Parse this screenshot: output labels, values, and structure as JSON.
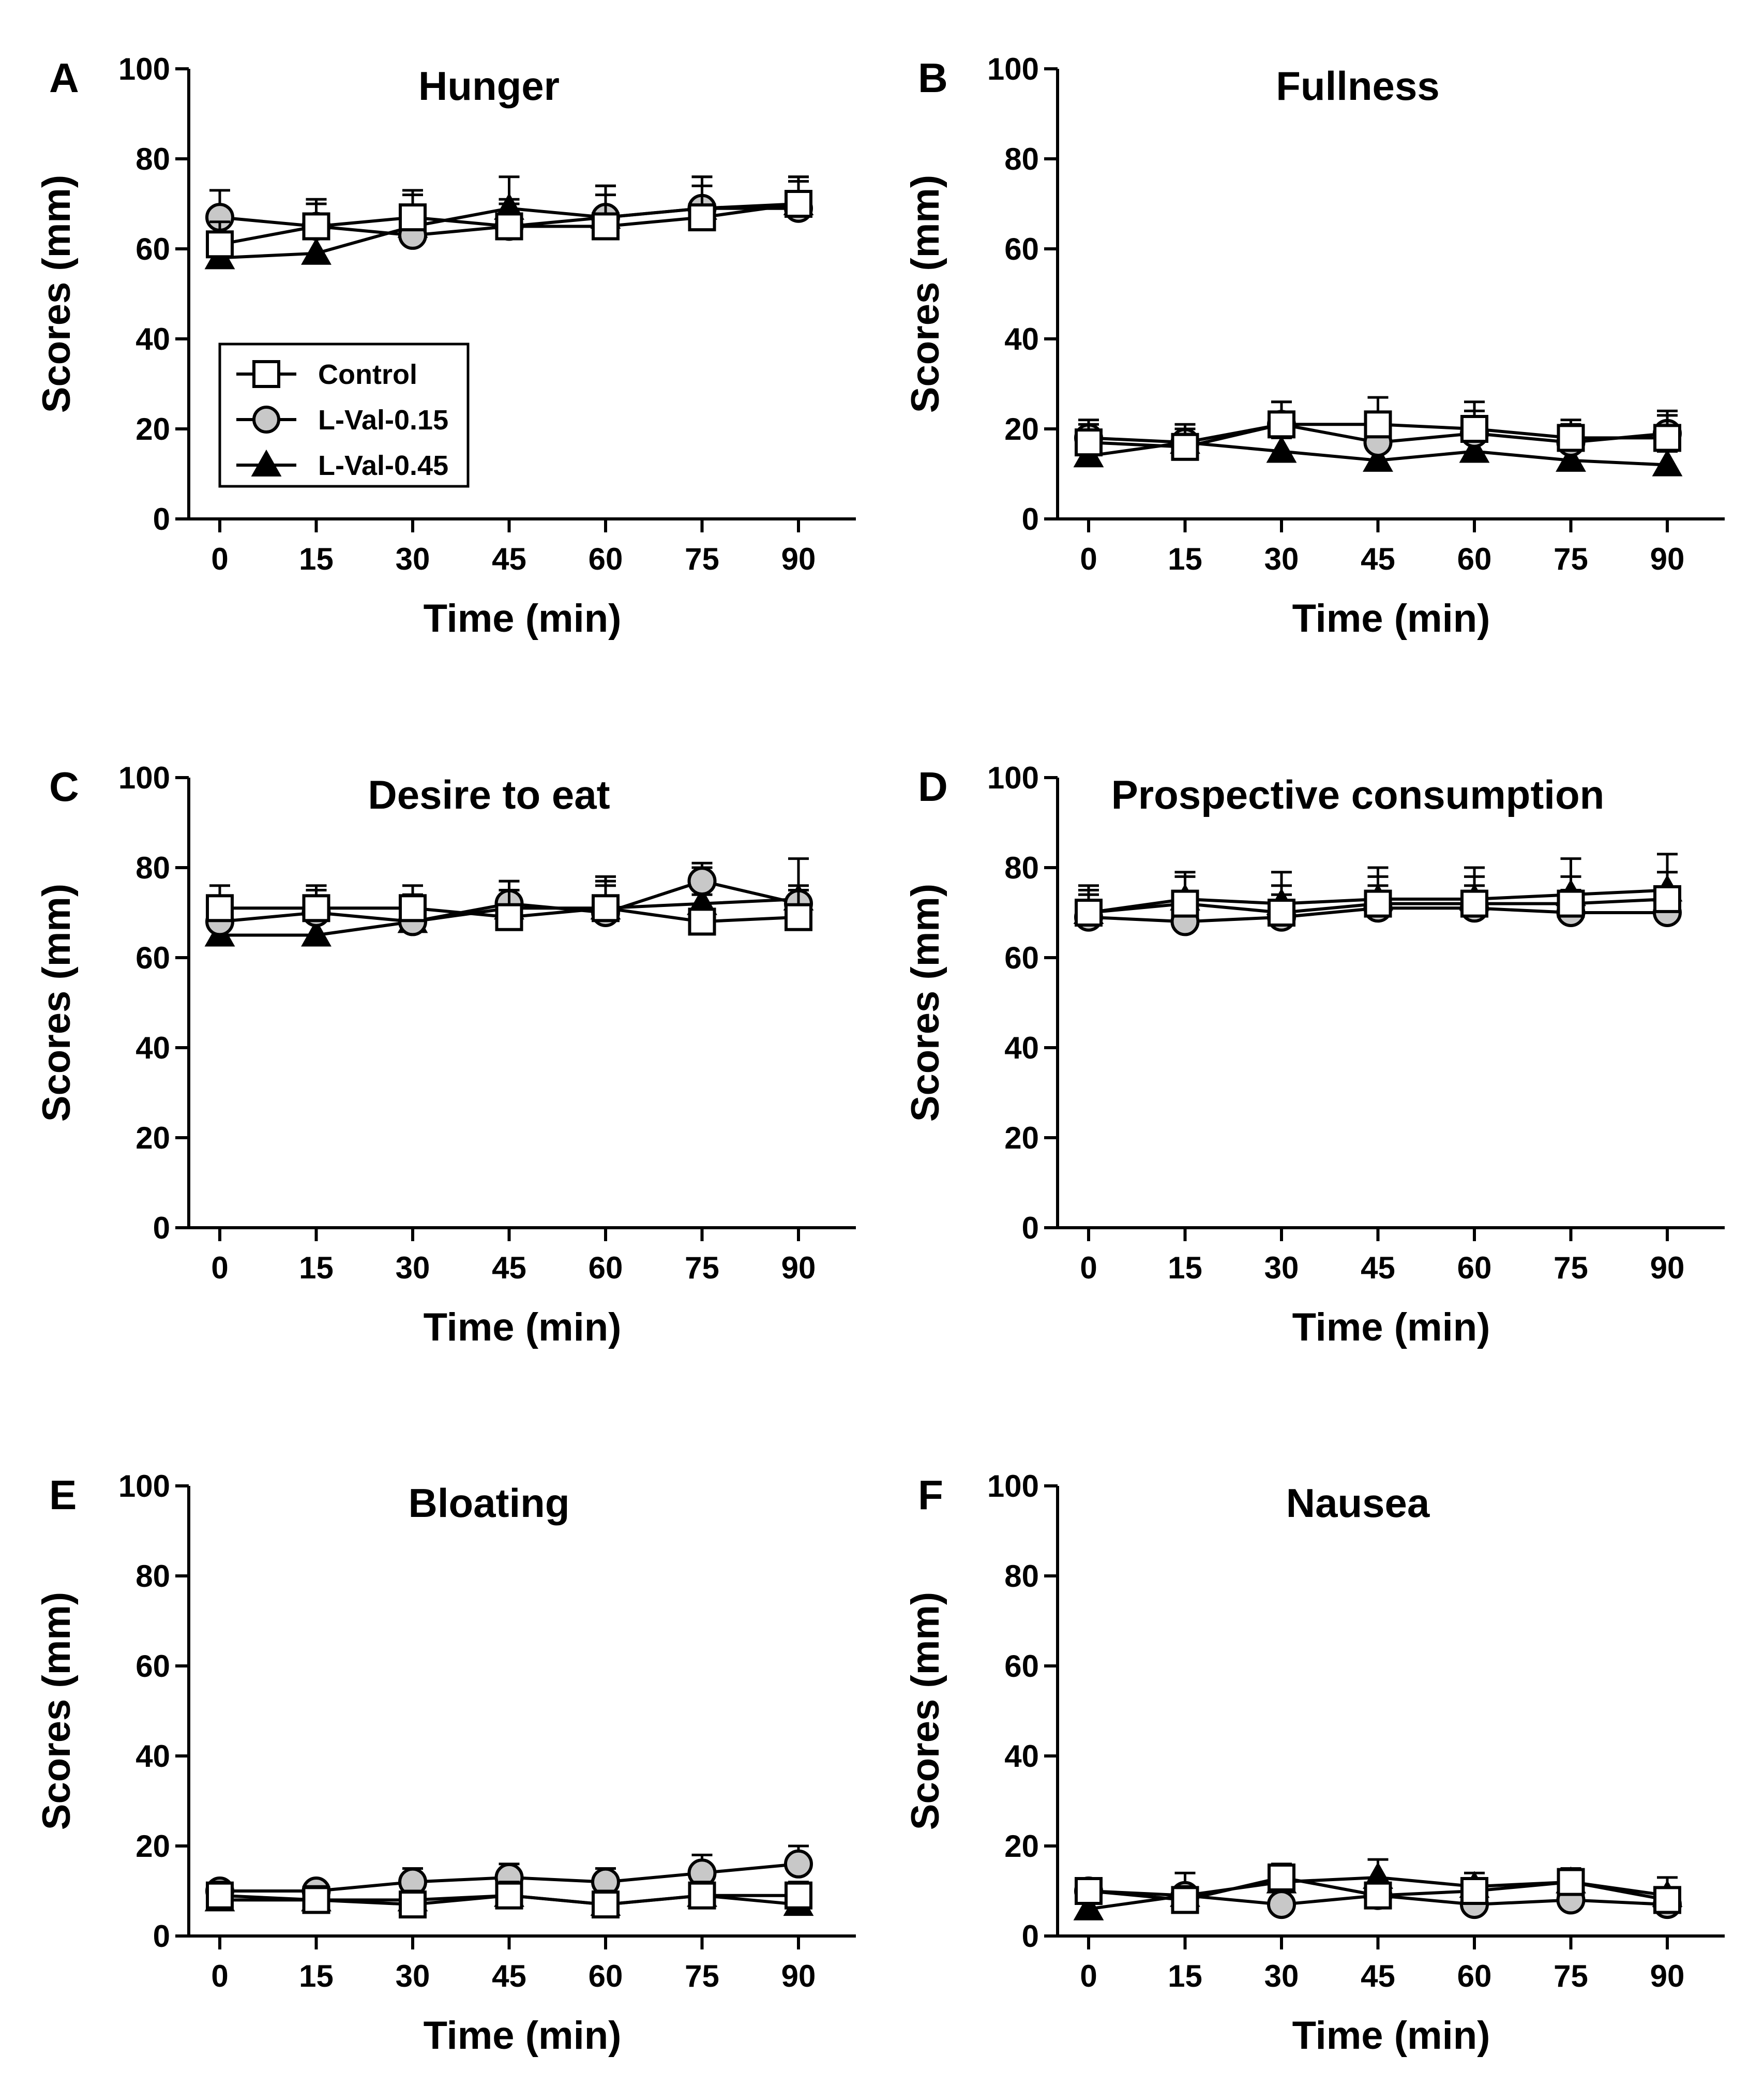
{
  "chart_data": [
    {
      "panel": "A",
      "type": "line",
      "title": "Hunger",
      "xlabel": "Time (min)",
      "ylabel": "Scores (mm)",
      "x": [
        0,
        15,
        30,
        45,
        60,
        75,
        90
      ],
      "ylim": [
        0,
        100
      ],
      "yticks": [
        0,
        20,
        40,
        60,
        80,
        100
      ],
      "series": [
        {
          "name": "Control",
          "values": [
            61,
            65,
            67,
            65,
            65,
            67,
            70
          ],
          "errors": [
            5,
            5,
            6,
            5,
            7,
            7,
            5
          ]
        },
        {
          "name": "L-Val-0.15",
          "values": [
            67,
            65,
            63,
            65,
            67,
            69,
            69
          ],
          "errors": [
            6,
            6,
            6,
            6,
            7,
            7,
            7
          ]
        },
        {
          "name": "L-Val-0.45",
          "values": [
            58,
            59,
            65,
            69,
            67,
            69,
            70
          ],
          "errors": [
            5,
            5,
            7,
            7,
            7,
            7,
            6
          ]
        }
      ],
      "legend": {
        "placement": "upper-left",
        "entries": [
          "Control",
          "L-Val-0.15",
          "L-Val-0.45"
        ]
      }
    },
    {
      "panel": "B",
      "type": "line",
      "title": "Fullness",
      "xlabel": "Time (min)",
      "ylabel": "Scores (mm)",
      "x": [
        0,
        15,
        30,
        45,
        60,
        75,
        90
      ],
      "ylim": [
        0,
        100
      ],
      "yticks": [
        0,
        20,
        40,
        60,
        80,
        100
      ],
      "series": [
        {
          "name": "Control",
          "values": [
            17,
            16,
            21,
            21,
            20,
            18,
            18
          ],
          "errors": [
            4,
            4,
            5,
            6,
            6,
            4,
            5
          ]
        },
        {
          "name": "L-Val-0.15",
          "values": [
            18,
            17,
            21,
            17,
            19,
            17,
            19
          ],
          "errors": [
            4,
            4,
            5,
            5,
            5,
            4,
            5
          ]
        },
        {
          "name": "L-Val-0.45",
          "values": [
            14,
            17,
            15,
            13,
            15,
            13,
            12
          ],
          "errors": [
            3,
            3,
            3,
            3,
            3,
            3,
            3
          ]
        }
      ]
    },
    {
      "panel": "C",
      "type": "line",
      "title": "Desire to eat",
      "xlabel": "Time (min)",
      "ylabel": "Scores (mm)",
      "x": [
        0,
        15,
        30,
        45,
        60,
        75,
        90
      ],
      "ylim": [
        0,
        100
      ],
      "yticks": [
        0,
        20,
        40,
        60,
        80,
        100
      ],
      "series": [
        {
          "name": "Control",
          "values": [
            71,
            71,
            71,
            69,
            71,
            68,
            69
          ],
          "errors": [
            5,
            5,
            5,
            6,
            6,
            6,
            6
          ]
        },
        {
          "name": "L-Val-0.15",
          "values": [
            68,
            70,
            68,
            72,
            70,
            77,
            72
          ],
          "errors": [
            5,
            5,
            5,
            5,
            6,
            4,
            4
          ]
        },
        {
          "name": "L-Val-0.45",
          "values": [
            65,
            65,
            68,
            71,
            71,
            72,
            73
          ],
          "errors": [
            5,
            5,
            6,
            6,
            7,
            8,
            9
          ]
        }
      ]
    },
    {
      "panel": "D",
      "type": "line",
      "title": "Prospective consumption",
      "xlabel": "Time (min)",
      "ylabel": "Scores (mm)",
      "x": [
        0,
        15,
        30,
        45,
        60,
        75,
        90
      ],
      "ylim": [
        0,
        100
      ],
      "yticks": [
        0,
        20,
        40,
        60,
        80,
        100
      ],
      "series": [
        {
          "name": "Control",
          "values": [
            70,
            72,
            70,
            72,
            72,
            72,
            73
          ],
          "errors": [
            6,
            6,
            6,
            6,
            6,
            6,
            6
          ]
        },
        {
          "name": "L-Val-0.15",
          "values": [
            69,
            68,
            69,
            71,
            71,
            70,
            70
          ],
          "errors": [
            5,
            5,
            5,
            5,
            5,
            5,
            5
          ]
        },
        {
          "name": "L-Val-0.45",
          "values": [
            70,
            73,
            72,
            73,
            73,
            74,
            75
          ],
          "errors": [
            5,
            6,
            7,
            7,
            7,
            8,
            8
          ]
        }
      ]
    },
    {
      "panel": "E",
      "type": "line",
      "title": "Bloating",
      "xlabel": "Time (min)",
      "ylabel": "Scores (mm)",
      "x": [
        0,
        15,
        30,
        45,
        60,
        75,
        90
      ],
      "ylim": [
        0,
        100
      ],
      "yticks": [
        0,
        20,
        40,
        60,
        80,
        100
      ],
      "series": [
        {
          "name": "Control",
          "values": [
            9,
            8,
            7,
            9,
            7,
            9,
            9
          ],
          "errors": [
            3,
            3,
            3,
            3,
            3,
            3,
            3
          ]
        },
        {
          "name": "L-Val-0.15",
          "values": [
            10,
            10,
            12,
            13,
            12,
            14,
            16
          ],
          "errors": [
            2,
            2,
            3,
            3,
            3,
            4,
            4
          ]
        },
        {
          "name": "L-Val-0.45",
          "values": [
            8,
            8,
            8,
            9,
            7,
            9,
            7
          ],
          "errors": [
            2,
            2,
            2,
            2,
            2,
            2,
            2
          ]
        }
      ]
    },
    {
      "panel": "F",
      "type": "line",
      "title": "Nausea",
      "xlabel": "Time (min)",
      "ylabel": "Scores (mm)",
      "x": [
        0,
        15,
        30,
        45,
        60,
        75,
        90
      ],
      "ylim": [
        0,
        100
      ],
      "yticks": [
        0,
        20,
        40,
        60,
        80,
        100
      ],
      "series": [
        {
          "name": "Control",
          "values": [
            10,
            8,
            13,
            9,
            10,
            12,
            8
          ],
          "errors": [
            2,
            3,
            3,
            3,
            2,
            3,
            2
          ]
        },
        {
          "name": "L-Val-0.15",
          "values": [
            10,
            9,
            7,
            9,
            7,
            8,
            7
          ],
          "errors": [
            2,
            2,
            2,
            2,
            2,
            2,
            2
          ]
        },
        {
          "name": "L-Val-0.45",
          "values": [
            6,
            9,
            12,
            13,
            11,
            12,
            9
          ],
          "errors": [
            3,
            5,
            3,
            4,
            3,
            3,
            4
          ]
        }
      ]
    }
  ]
}
